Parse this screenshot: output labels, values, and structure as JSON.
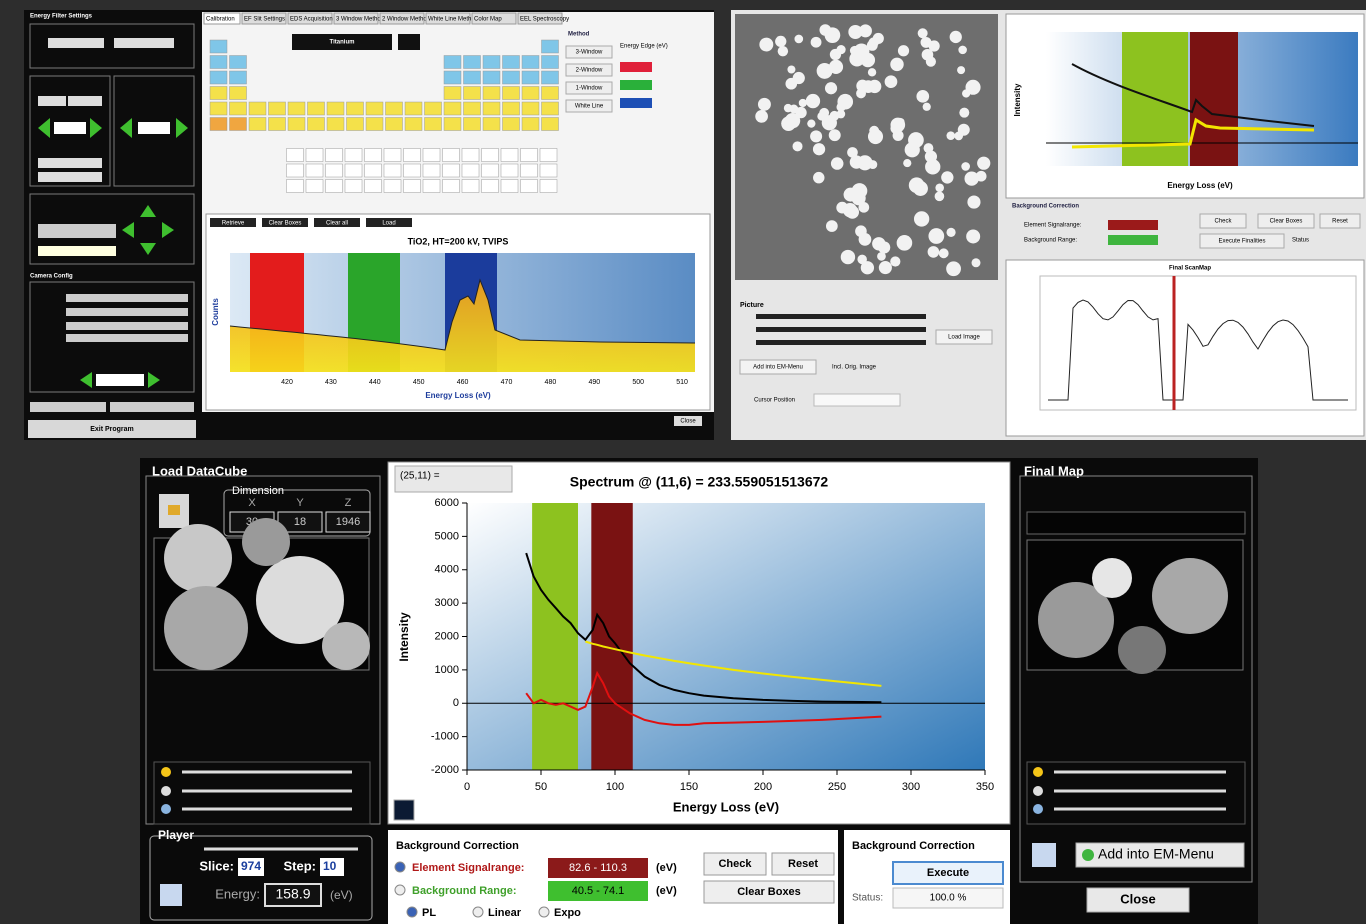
{
  "top_left": {
    "sidebar_title": "Energy Filter Settings",
    "tabs": [
      "Calibration",
      "EF Slit Settings",
      "EDS Acquisition",
      "3 Window Method",
      "2 Window Method",
      "White Line Method",
      "Color Map",
      "EEL Spectroscopy"
    ],
    "element": "Titanium",
    "method_title": "Method",
    "methods": [
      "3-Window",
      "2-Window",
      "1-Window",
      "White Line"
    ],
    "energy_edge": "Energy Edge (eV)",
    "buttons": [
      "Retrieve",
      "Clear Boxes",
      "Clear all",
      "Load"
    ],
    "spectrum": {
      "title": "TiO2, HT=200 kV, TVIPS",
      "x_label": "Energy Loss (eV)",
      "y_label": "Counts",
      "x_ticks": [
        "420",
        "430",
        "440",
        "450",
        "460",
        "470",
        "480",
        "490",
        "500",
        "510"
      ]
    },
    "camera_config": "Camera Config",
    "exit": "Exit Program",
    "close": "Close"
  },
  "top_right": {
    "x_label": "Energy Loss (eV)",
    "y_label": "Intensity",
    "bg_title": "Background Correction",
    "element_range": "Element Signalrange:",
    "background_range": "Background Range:",
    "buttons": [
      "Check",
      "Clear Boxes",
      "Reset",
      "Execute Finalities"
    ],
    "status": "Status",
    "map_title": "Final ScanMap",
    "picture": "Picture",
    "load_image": "Load Image",
    "add": "Add into EM-Menu",
    "incl": "Incl. Orig. Image",
    "cursor": "Cursor Position"
  },
  "bottom": {
    "load_title": "Load DataCube",
    "dimension": "Dimension",
    "dim_labels": [
      "X",
      "Y",
      "Z"
    ],
    "dim_values": [
      30,
      18,
      1946
    ],
    "player": "Player",
    "slice_label": "Slice:",
    "slice": 974,
    "step_label": "Step:",
    "step": 10,
    "energy_label": "Energy:",
    "energy": 158.9,
    "energy_unit": "(eV)",
    "cursor_box": "(25,11) =",
    "spectrum": {
      "title": "Spectrum @ (11,6) = 233.559051513672",
      "x_label": "Energy Loss (eV)",
      "y_label": "Intensity",
      "xlim": [
        0,
        350
      ],
      "ylim": [
        -2000,
        6000
      ],
      "xticks": [
        0,
        50,
        100,
        150,
        200,
        250,
        300,
        350
      ],
      "yticks": [
        -2000,
        -1000,
        0,
        1000,
        2000,
        3000,
        4000,
        5000,
        6000
      ],
      "regions": [
        {
          "color": "#8dc21f",
          "xlim": [
            44,
            75
          ]
        },
        {
          "color": "#7a1212",
          "xlim": [
            84,
            112
          ]
        }
      ],
      "x": [
        40,
        45,
        50,
        55,
        60,
        65,
        70,
        75,
        80,
        85,
        88,
        92,
        96,
        100,
        110,
        120,
        130,
        140,
        150,
        160,
        180,
        200,
        220,
        240,
        260,
        280
      ],
      "series": [
        {
          "color": "#000000",
          "values": [
            4500,
            3800,
            3400,
            3100,
            2850,
            2600,
            2400,
            2100,
            1900,
            2200,
            2650,
            2400,
            2000,
            1800,
            1200,
            800,
            550,
            400,
            300,
            230,
            150,
            100,
            70,
            50,
            40,
            30
          ]
        },
        {
          "color": "#f2e600",
          "values": [
            null,
            null,
            null,
            null,
            null,
            null,
            null,
            null,
            1850,
            1780,
            1750,
            1700,
            1660,
            1620,
            1520,
            1430,
            1350,
            1270,
            1200,
            1130,
            1000,
            890,
            790,
            700,
            610,
            520
          ]
        },
        {
          "color": "#e01010",
          "values": [
            300,
            0,
            100,
            0,
            -50,
            0,
            -100,
            -200,
            -100,
            500,
            900,
            600,
            200,
            0,
            -300,
            -500,
            -600,
            -650,
            -650,
            -600,
            -580,
            -560,
            -530,
            -500,
            -450,
            -400
          ]
        }
      ]
    },
    "bg_title": "Background Correction",
    "element_range_label": "Element Signalrange:",
    "element_range": "82.6 - 110.3",
    "background_range_label": "Background Range:",
    "background_range": "40.5 - 74.1",
    "unit": "(eV)",
    "fits": [
      "PL",
      "Linear",
      "Expo"
    ],
    "check": "Check",
    "reset": "Reset",
    "clear": "Clear Boxes",
    "bg_title2": "Background Correction",
    "execute": "Execute",
    "status_label": "Status:",
    "status": "100.0 %",
    "final_map": "Final Map",
    "add": "Add into EM-Menu",
    "close": "Close"
  }
}
